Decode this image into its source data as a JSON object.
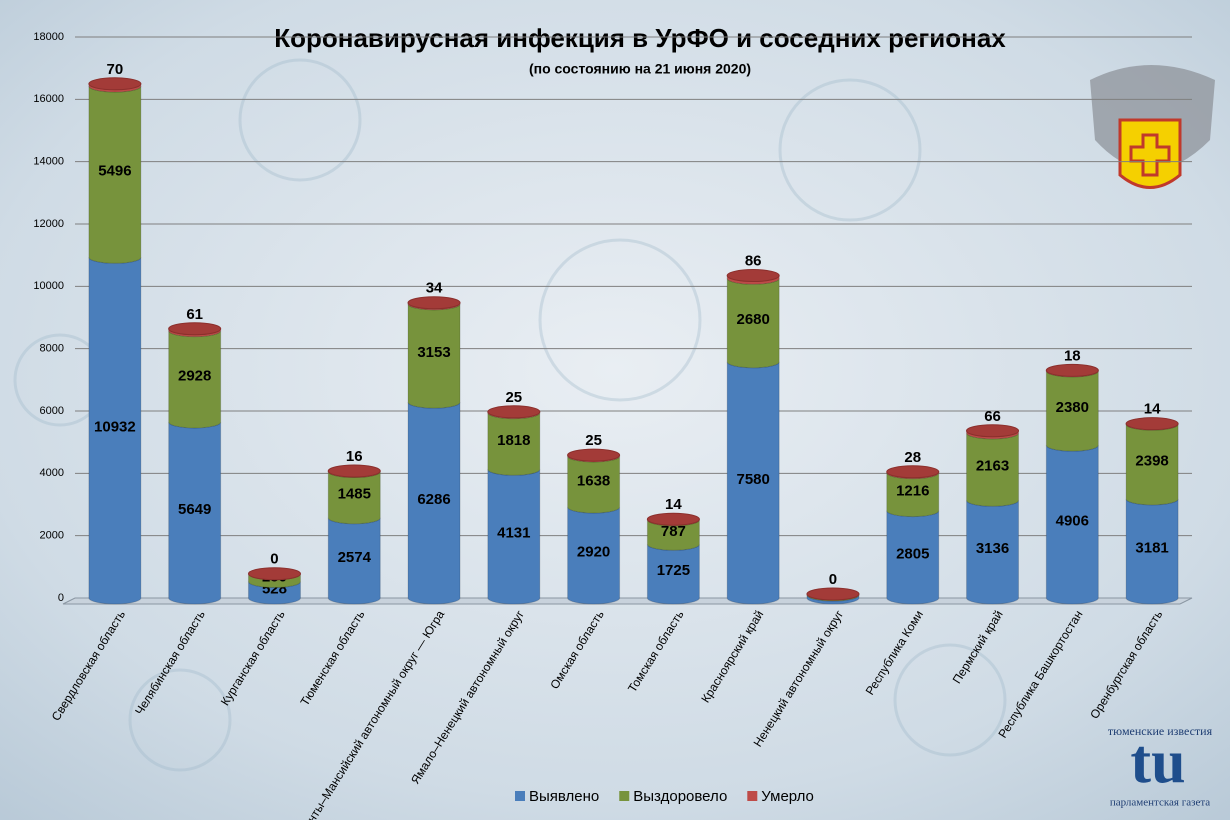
{
  "chart_data": {
    "type": "stacked_cylinder_bar",
    "title": "Коронавирусная инфекция в УрФО и соседних регионах",
    "subtitle": "(по состоянию на 21 июня 2020)",
    "categories": [
      "Свердловская область",
      "Челябинская область",
      "Курганская область",
      "Тюменская область",
      "Ханты–Мансийский автономный округ — Югра",
      "Ямало–Ненецкий автономный округ",
      "Омская область",
      "Томская область",
      "Красноярский край",
      "Ненецкий автономный округ",
      "Республика Коми",
      "Пермский край",
      "Республика Башкортостан",
      "Оренбургская область"
    ],
    "series": [
      {
        "name": "Выявлено",
        "color": "#4a7ebb",
        "values": [
          10932,
          5649,
          528,
          2574,
          6286,
          4131,
          2920,
          1725,
          7580,
          95,
          2805,
          3136,
          4906,
          3181
        ]
      },
      {
        "name": "Выздоровело",
        "color": "#77933c",
        "values": [
          5496,
          2928,
          250,
          1485,
          3153,
          1818,
          1638,
          787,
          2680,
          33,
          1216,
          2163,
          2380,
          2398
        ]
      },
      {
        "name": "Умерло",
        "color": "#be4b48",
        "values": [
          70,
          61,
          0,
          16,
          34,
          25,
          25,
          14,
          86,
          0,
          28,
          66,
          18,
          14
        ]
      }
    ],
    "ylim": [
      0,
      18000
    ],
    "yticks": [
      0,
      2000,
      4000,
      6000,
      8000,
      10000,
      12000,
      14000,
      16000,
      18000
    ],
    "grid": true,
    "legend": "bottom",
    "logo": {
      "top": "тюменские известия",
      "mark": "tu",
      "bottom": "парламентская газета"
    }
  }
}
